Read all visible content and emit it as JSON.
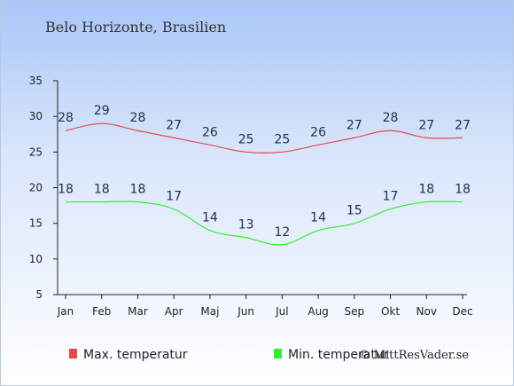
{
  "chart_data": {
    "type": "line",
    "title": "Belo Horizonte, Brasilien",
    "categories": [
      "Jan",
      "Feb",
      "Mar",
      "Apr",
      "Maj",
      "Jun",
      "Jul",
      "Aug",
      "Sep",
      "Okt",
      "Nov",
      "Dec"
    ],
    "series": [
      {
        "name": "Max. temperatur",
        "color": "#e84a4a",
        "values": [
          28,
          29,
          28,
          27,
          26,
          25,
          25,
          26,
          27,
          28,
          27,
          27
        ]
      },
      {
        "name": "Min. temperatur",
        "color": "#33ee33",
        "values": [
          18,
          18,
          18,
          17,
          14,
          13,
          12,
          14,
          15,
          17,
          18,
          18
        ]
      }
    ],
    "ylim": [
      5,
      35
    ],
    "yticks": [
      5,
      10,
      15,
      20,
      25,
      30,
      35
    ],
    "grid": false,
    "legend": "bottom-left"
  },
  "credit": "© MittResVader.se"
}
